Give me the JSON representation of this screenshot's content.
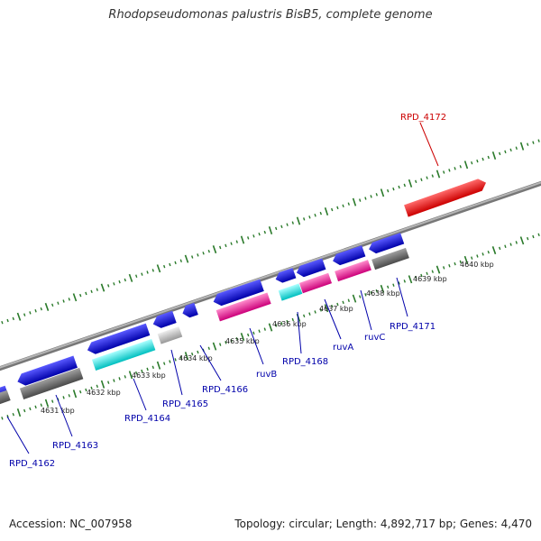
{
  "title": "Rhodopseudomonas palustris BisB5, complete genome",
  "footer": {
    "accession": "Accession: NC_007958",
    "topology": "Topology: circular; Length: 4,892,717 bp; Genes: 4,470"
  },
  "colors": {
    "backbone": "#8a8a8a",
    "tick": "#2a7a2a",
    "red": "#ee1111",
    "blue": "#1515dd",
    "cyan": "#11dddd",
    "magenta": "#ee1199",
    "gray_dark": "#666666",
    "gray_light": "#bbbbbb",
    "label_blue": "#0000aa",
    "label_red": "#cc0000"
  },
  "kbp_labels": [
    "4631 kbp",
    "4632 kbp",
    "4633 kbp",
    "4634 kbp",
    "4635 kbp",
    "4636 kbp",
    "4637 kbp",
    "4638 kbp",
    "4639 kbp",
    "4640 kbp"
  ],
  "gene_labels": [
    "RPD_4162",
    "RPD_4163",
    "RPD_4164",
    "RPD_4165",
    "RPD_4166",
    "ruvB",
    "RPD_4168",
    "ruvA",
    "ruvC",
    "RPD_4171",
    "RPD_4172"
  ]
}
